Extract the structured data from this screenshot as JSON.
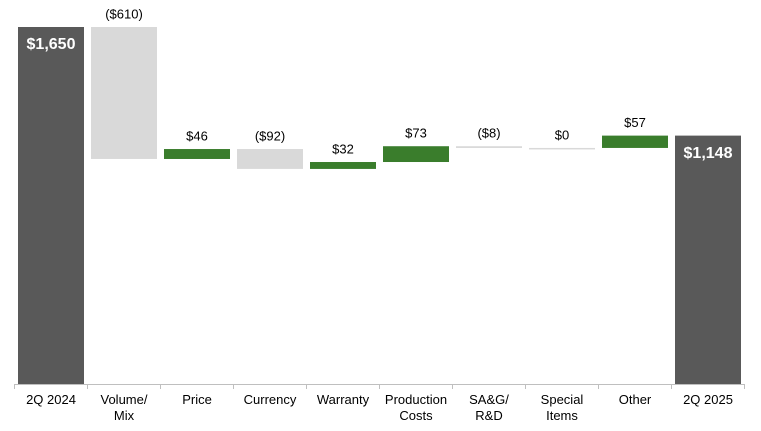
{
  "chart_data": {
    "type": "waterfall",
    "categories": [
      [
        "2Q 2024"
      ],
      [
        "Volume/",
        "Mix"
      ],
      [
        "Price"
      ],
      [
        "Currency"
      ],
      [
        "Warranty"
      ],
      [
        "Production",
        "Costs"
      ],
      [
        "SA&G/",
        "R&D"
      ],
      [
        "Special",
        "Items"
      ],
      [
        "Other"
      ],
      [
        "2Q 2025"
      ]
    ],
    "values": [
      1650,
      -610,
      46,
      -92,
      32,
      73,
      -8,
      0,
      57,
      1148
    ],
    "value_labels": [
      "$1,650",
      "($610)",
      "$46",
      "($92)",
      "$32",
      "$73",
      "($8)",
      "$0",
      "$57",
      "$1,148"
    ],
    "colors": [
      "#595959",
      "#d9d9d9",
      "#3a7d2c",
      "#d9d9d9",
      "#3a7d2c",
      "#3a7d2c",
      "#d9d9d9",
      "#d9d9d9",
      "#3a7d2c",
      "#595959"
    ],
    "ylim": [
      0,
      1650
    ]
  }
}
